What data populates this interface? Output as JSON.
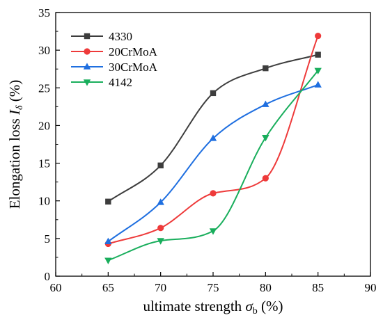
{
  "chart_data": {
    "type": "line",
    "title": "",
    "xlabel": "ultimate strength σb (%)",
    "xlabel_parts": {
      "main": "ultimate strength ",
      "symbol": "σ",
      "sub": "b",
      "unit": " (%)"
    },
    "ylabel": "Elongation loss Iδ (%)",
    "ylabel_parts": {
      "main": "Elongation loss ",
      "symbol": "I",
      "sub": "δ",
      "unit": " (%)"
    },
    "xlim": [
      60,
      90
    ],
    "ylim": [
      0,
      35
    ],
    "xticks": [
      "60",
      "65",
      "70",
      "75",
      "80",
      "85",
      "90"
    ],
    "yticks": [
      "0",
      "5",
      "10",
      "15",
      "20",
      "25",
      "30",
      "35"
    ],
    "grid": false,
    "legend_position": "top-left",
    "x": [
      65,
      70,
      75,
      80,
      85
    ],
    "series": [
      {
        "name": "4330",
        "values": [
          9.9,
          14.7,
          24.3,
          27.6,
          29.4
        ],
        "color": "#3d3d3d",
        "marker": "square"
      },
      {
        "name": "20CrMoA",
        "values": [
          4.3,
          6.4,
          11.0,
          13.0,
          31.9
        ],
        "color": "#ee3a3a",
        "marker": "circle"
      },
      {
        "name": "30CrMoA",
        "values": [
          4.6,
          9.8,
          18.3,
          22.8,
          25.4
        ],
        "color": "#1f6fe0",
        "marker": "triangle-up"
      },
      {
        "name": "4142",
        "values": [
          2.1,
          4.7,
          6.0,
          18.4,
          27.3
        ],
        "color": "#19ae5c",
        "marker": "triangle-down"
      }
    ]
  }
}
